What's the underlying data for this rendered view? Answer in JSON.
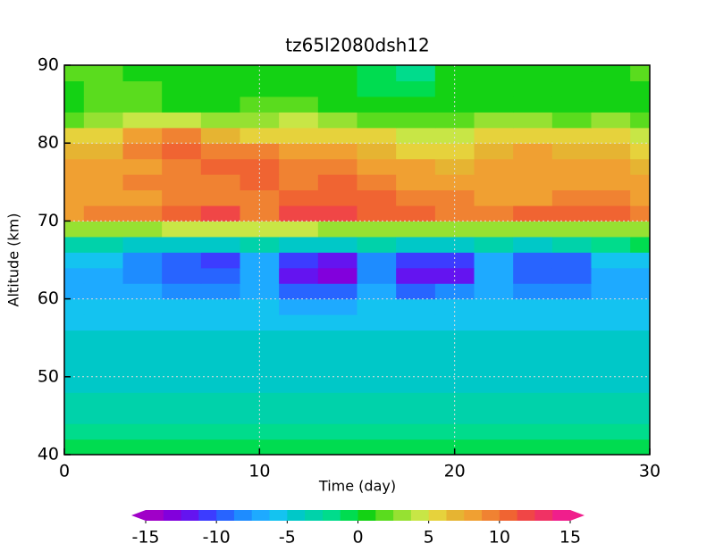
{
  "chart_data": {
    "type": "contour",
    "title": "tz65l2080dsh12",
    "xlabel": "Time (day)",
    "ylabel": "Altitude (km)",
    "xlim": [
      0,
      30
    ],
    "xticks": [
      0,
      10,
      20,
      30
    ],
    "ylim": [
      40,
      90
    ],
    "yticks": [
      40,
      50,
      60,
      70,
      80,
      90
    ],
    "grid": true,
    "x": [
      0,
      2,
      4,
      6,
      8,
      10,
      12,
      14,
      16,
      18,
      20,
      22,
      24,
      26,
      28,
      30
    ],
    "y": [
      41,
      43,
      45,
      47,
      49,
      51,
      53,
      55,
      57,
      59,
      61,
      63,
      65,
      67,
      69,
      71,
      73,
      75,
      77,
      79,
      81,
      83,
      85,
      87,
      89
    ],
    "z": [
      [
        -1,
        -1,
        -1,
        -1,
        -1,
        -1,
        -1,
        -1,
        -1,
        -1,
        -1,
        -1,
        -1,
        -1,
        -1,
        -1
      ],
      [
        -2.5,
        -2.5,
        -2.5,
        -2.5,
        -2.5,
        -2.5,
        -2.5,
        -2.5,
        -2.5,
        -2.5,
        -2.5,
        -2.5,
        -2.5,
        -2.5,
        -2.5,
        -2.5
      ],
      [
        -3,
        -3,
        -3,
        -3,
        -3,
        -3,
        -3,
        -3,
        -3,
        -3,
        -3,
        -3,
        -3,
        -3,
        -3,
        -3
      ],
      [
        -3.5,
        -3.5,
        -3.5,
        -3.5,
        -3.5,
        -3.5,
        -3.5,
        -3.5,
        -3.5,
        -3.5,
        -3.5,
        -3.5,
        -3.5,
        -3.5,
        -3.5,
        -3.5
      ],
      [
        -4,
        -4,
        -4,
        -4,
        -4,
        -4,
        -4,
        -4,
        -4,
        -4,
        -4,
        -4,
        -4,
        -4,
        -4,
        -4
      ],
      [
        -4,
        -4,
        -4,
        -4,
        -4,
        -4,
        -4,
        -4,
        -4,
        -4,
        -4,
        -4,
        -4,
        -4,
        -4,
        -4
      ],
      [
        -4.5,
        -4.5,
        -4.5,
        -4.5,
        -4.5,
        -4.5,
        -4.5,
        -4.5,
        -4.5,
        -4.5,
        -4.5,
        -4.5,
        -4.5,
        -4.5,
        -4.5,
        -4.5
      ],
      [
        -5,
        -5,
        -5,
        -5,
        -5,
        -5,
        -5,
        -5,
        -5,
        -5,
        -5,
        -5,
        -5,
        -5,
        -5,
        -5
      ],
      [
        -5.5,
        -5.5,
        -5.5,
        -5.5,
        -5.5,
        -5.5,
        -6,
        -6,
        -5.5,
        -5.5,
        -5.5,
        -5.5,
        -5.5,
        -5.5,
        -5.5,
        -5.5
      ],
      [
        -6,
        -6,
        -6,
        -6,
        -6,
        -6,
        -7,
        -7,
        -6,
        -6,
        -6,
        -6,
        -6,
        -6,
        -6,
        -6
      ],
      [
        -7,
        -7,
        -7.5,
        -8,
        -8,
        -7,
        -9,
        -9,
        -7.5,
        -9,
        -8,
        -7,
        -8,
        -8,
        -7,
        -7
      ],
      [
        -7,
        -7,
        -8,
        -10,
        -10,
        -7.5,
        -12,
        -13,
        -8,
        -12,
        -12,
        -7.5,
        -9,
        -9,
        -7,
        -7
      ],
      [
        -6,
        -6,
        -8,
        -10,
        -11,
        -7,
        -11,
        -12,
        -8,
        -11,
        -11,
        -7,
        -9,
        -9,
        -6,
        -6
      ],
      [
        -3,
        -3,
        -4,
        -4,
        -4,
        -3,
        -5,
        -4,
        -3,
        -4,
        -4,
        -3,
        -4,
        -3,
        -2,
        -1
      ],
      [
        3,
        3,
        3,
        4,
        4,
        4,
        4,
        3,
        3,
        3,
        3,
        3,
        3,
        3,
        3,
        3
      ],
      [
        8,
        9,
        9,
        11,
        12,
        9,
        12,
        12,
        10,
        10,
        9,
        9,
        10,
        10,
        10,
        9
      ],
      [
        8,
        8,
        8,
        9,
        9,
        9,
        10,
        11,
        10,
        9,
        9,
        8,
        8,
        9,
        9,
        8
      ],
      [
        8,
        8,
        9,
        9,
        9,
        10,
        9,
        10,
        9,
        8,
        8,
        8,
        8,
        8,
        8,
        8
      ],
      [
        8,
        8,
        8,
        9,
        11,
        11,
        9,
        9,
        8,
        8,
        7,
        8,
        8,
        8,
        8,
        7
      ],
      [
        7,
        7,
        9,
        10,
        9,
        9,
        8,
        8,
        7,
        6,
        5,
        7,
        8,
        7,
        7,
        6
      ],
      [
        5,
        6,
        8,
        9,
        7,
        6,
        6,
        6,
        5,
        4,
        4,
        5,
        6,
        6,
        5,
        4
      ],
      [
        2,
        3,
        4,
        4,
        3,
        3,
        4,
        3,
        2,
        2,
        2,
        3,
        3,
        2,
        3,
        2
      ],
      [
        1,
        2,
        2,
        1,
        0,
        2,
        2,
        1,
        0,
        0,
        0,
        1,
        1,
        0,
        1,
        1
      ],
      [
        1,
        2,
        2,
        1,
        0,
        1,
        1,
        0,
        -1,
        -1,
        0,
        1,
        0,
        0,
        1,
        1
      ],
      [
        2,
        2,
        1,
        1,
        1,
        1,
        0,
        0,
        -1,
        -2,
        0,
        1,
        0,
        1,
        1,
        2
      ]
    ],
    "zlim": [
      -15,
      15
    ],
    "zticks": [
      -15,
      -10,
      -5,
      0,
      5,
      10,
      15
    ],
    "colors": [
      "#a000c8",
      "#8200dc",
      "#6414f0",
      "#3c3cff",
      "#2864ff",
      "#1e8cff",
      "#1eaaff",
      "#14c3f0",
      "#00c8c8",
      "#00d2aa",
      "#00dc8c",
      "#00dc50",
      "#14d214",
      "#5adc1e",
      "#96e132",
      "#c8e646",
      "#e6d23c",
      "#e6b432",
      "#f0a032",
      "#f08232",
      "#f06432",
      "#f04646",
      "#f03264",
      "#f01e8c"
    ]
  }
}
